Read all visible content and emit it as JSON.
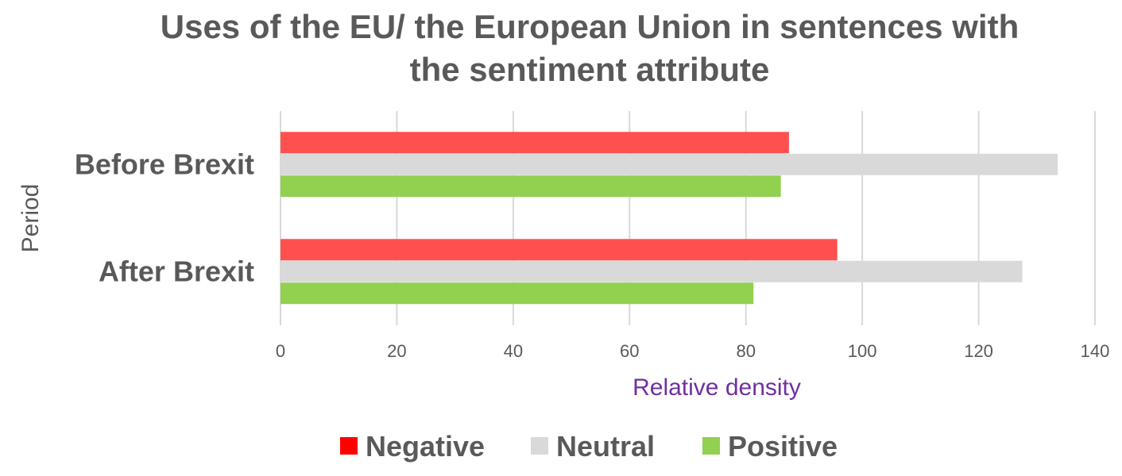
{
  "chart_data": {
    "type": "bar",
    "orientation": "horizontal",
    "title": [
      "Uses of the EU/ the European Union in sentences with",
      "the sentiment attribute"
    ],
    "xlabel": "Relative density",
    "ylabel": "Period",
    "categories": [
      "Before Brexit",
      "After Brexit"
    ],
    "series": [
      {
        "name": "Negative",
        "values": [
          87.4,
          95.7
        ],
        "color": "#FF5050"
      },
      {
        "name": "Neutral",
        "values": [
          133.6,
          127.5
        ],
        "color": "#D9D9D9"
      },
      {
        "name": "Positive",
        "values": [
          86.0,
          81.3
        ],
        "color": "#92D050"
      }
    ],
    "legend_colors": {
      "Negative": "#FF0000",
      "Neutral": "#D9D9D9",
      "Positive": "#92D050"
    },
    "xlim": [
      0,
      140
    ],
    "xticks": [
      0,
      20,
      40,
      60,
      80,
      100,
      120,
      140
    ],
    "grid": true,
    "legend_position": "bottom",
    "xlabel_color": "#7030A0"
  }
}
